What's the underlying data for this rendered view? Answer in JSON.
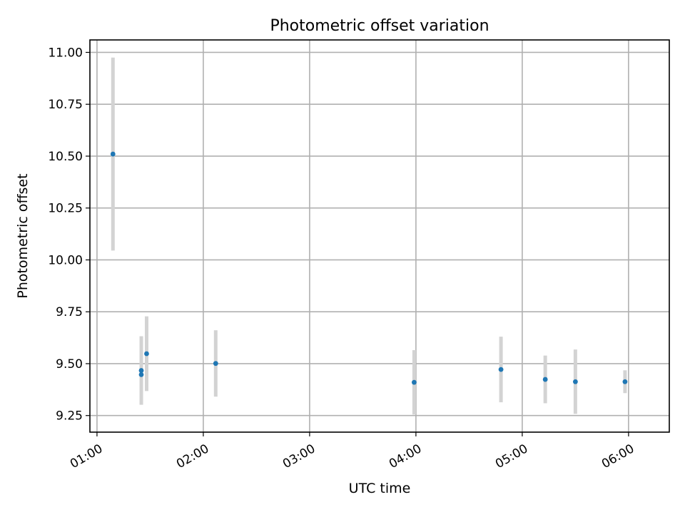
{
  "chart_data": {
    "type": "scatter",
    "title": "Photometric offset variation",
    "xlabel": "UTC time",
    "ylabel": "Photometric offset",
    "x_axis_kind": "time",
    "xlim": [
      "00:56",
      "06:23"
    ],
    "ylim": [
      9.17,
      11.06
    ],
    "x_ticks": [
      "01:00",
      "02:00",
      "03:00",
      "04:00",
      "05:00",
      "06:00"
    ],
    "y_ticks": [
      "9.25",
      "9.50",
      "9.75",
      "10.00",
      "10.25",
      "10.50",
      "10.75",
      "11.00"
    ],
    "grid": true,
    "error_bars": "symmetric y",
    "marker_color": "#1f77b4",
    "errorbar_color": "#d3d3d3",
    "series": [
      {
        "x": [
          "01:09",
          "01:25",
          "01:25",
          "01:28",
          "02:07",
          "03:59",
          "04:48",
          "05:13",
          "05:30",
          "05:58"
        ],
        "values": [
          10.51,
          9.467,
          9.447,
          9.548,
          9.501,
          9.41,
          9.472,
          9.424,
          9.413,
          9.413
        ],
        "errors": [
          0.465,
          0.165,
          0.0,
          0.18,
          0.16,
          0.155,
          0.158,
          0.115,
          0.155,
          0.055
        ]
      }
    ]
  }
}
